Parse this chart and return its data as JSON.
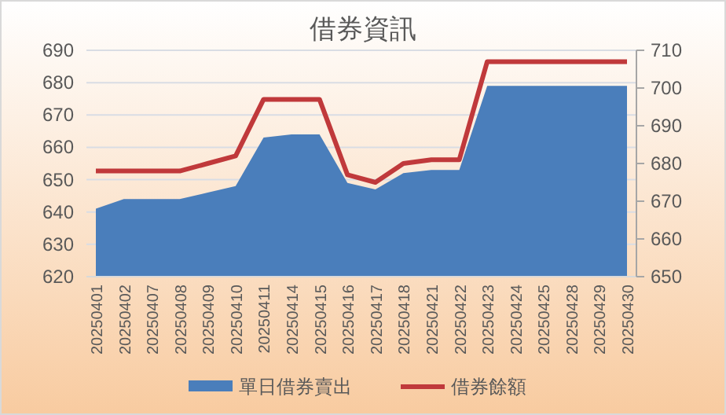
{
  "chart_data": {
    "type": "area",
    "title": "借券資訊",
    "categories": [
      "20250401",
      "20250402",
      "20250407",
      "20250408",
      "20250409",
      "20250410",
      "20250411",
      "20250414",
      "20250415",
      "20250416",
      "20250417",
      "20250418",
      "20250421",
      "20250422",
      "20250423",
      "20250424",
      "20250425",
      "20250428",
      "20250429",
      "20250430"
    ],
    "series": [
      {
        "name": "單日借券賣出",
        "color": "#4a7ebb",
        "values": [
          641,
          644,
          644,
          644,
          646,
          648,
          663,
          664,
          664,
          649,
          647,
          652,
          653,
          653,
          679,
          679,
          679,
          679,
          679,
          679
        ]
      },
      {
        "name": "借券餘額",
        "type": "line",
        "axis": "y2",
        "color": "#c0393b",
        "values": [
          678,
          678,
          678,
          678,
          680,
          682,
          697,
          697,
          697,
          677,
          675,
          680,
          681,
          681,
          707,
          707,
          707,
          707,
          707,
          707
        ]
      }
    ],
    "ylim": [
      620,
      690
    ],
    "yticks": [
      620,
      630,
      640,
      650,
      660,
      670,
      680,
      690
    ],
    "y2lim": [
      650,
      710
    ],
    "y2ticks": [
      650,
      660,
      670,
      680,
      690,
      700,
      710
    ],
    "grid": "y",
    "legend": "bottom",
    "marker": "none",
    "line_style": "solid"
  }
}
